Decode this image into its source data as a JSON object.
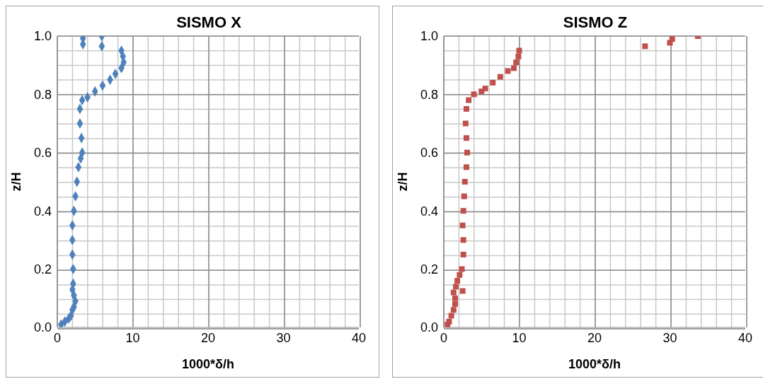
{
  "chart_data": [
    {
      "type": "scatter",
      "title": "SISMO X",
      "xlabel": "1000*δ/h",
      "ylabel": "z/H",
      "xlim": [
        0,
        40
      ],
      "ylim": [
        0,
        1
      ],
      "xticks": [
        0,
        10,
        20,
        30,
        40
      ],
      "yticks": [
        {
          "value": 0,
          "label": "0.0"
        },
        {
          "value": 0.2,
          "label": "0.2"
        },
        {
          "value": 0.4,
          "label": "0.4"
        },
        {
          "value": 0.6,
          "label": "0.6"
        },
        {
          "value": 0.8,
          "label": "0.8"
        },
        {
          "value": 1,
          "label": "1.0"
        }
      ],
      "grid": true,
      "marker": "diamond",
      "series": [
        {
          "color": "#4f81bd",
          "x": [
            0.5,
            1.0,
            1.5,
            1.8,
            2.0,
            2.2,
            2.4,
            2.2,
            2.0,
            2.1,
            2.1,
            2.0,
            2.0,
            2.0,
            2.2,
            2.4,
            2.6,
            2.8,
            3.1,
            3.3,
            3.2,
            3.0,
            3.0,
            3.3,
            4.0,
            5.0,
            6.0,
            7.0,
            7.7,
            8.5,
            8.8,
            8.7,
            8.5,
            3.4,
            3.4,
            5.9,
            5.9
          ],
          "values": [
            0.01,
            0.02,
            0.03,
            0.04,
            0.06,
            0.07,
            0.09,
            0.11,
            0.13,
            0.15,
            0.2,
            0.25,
            0.3,
            0.35,
            0.4,
            0.45,
            0.5,
            0.55,
            0.58,
            0.6,
            0.65,
            0.7,
            0.75,
            0.78,
            0.79,
            0.81,
            0.83,
            0.85,
            0.87,
            0.89,
            0.91,
            0.93,
            0.95,
            0.972,
            0.992,
            0.965,
            1.0
          ]
        }
      ]
    },
    {
      "type": "scatter",
      "title": "SISMO Z",
      "xlabel": "1000*δ/h",
      "ylabel": "z/H",
      "xlim": [
        0,
        40
      ],
      "ylim": [
        0,
        1
      ],
      "xticks": [
        0,
        10,
        20,
        30,
        40
      ],
      "yticks": [
        {
          "value": 0,
          "label": "0.0"
        },
        {
          "value": 0.2,
          "label": "0.2"
        },
        {
          "value": 0.4,
          "label": "0.4"
        },
        {
          "value": 0.6,
          "label": "0.6"
        },
        {
          "value": 0.8,
          "label": "0.8"
        },
        {
          "value": 1,
          "label": "1.0"
        }
      ],
      "grid": true,
      "marker": "square",
      "series": [
        {
          "color": "#c0504d",
          "x": [
            0.5,
            0.7,
            1.0,
            1.3,
            1.5,
            1.5,
            1.3,
            2.5,
            1.6,
            1.8,
            2.1,
            2.4,
            2.6,
            2.6,
            2.5,
            2.6,
            2.7,
            2.8,
            3.0,
            3.1,
            3.0,
            2.9,
            3.0,
            3.3,
            4.0,
            5.0,
            5.5,
            6.5,
            7.5,
            8.5,
            9.3,
            9.6,
            9.9,
            10.0,
            26.7,
            30.0,
            30.3,
            33.7
          ],
          "values": [
            0.01,
            0.02,
            0.04,
            0.06,
            0.08,
            0.1,
            0.12,
            0.125,
            0.14,
            0.16,
            0.18,
            0.2,
            0.25,
            0.3,
            0.35,
            0.4,
            0.45,
            0.5,
            0.55,
            0.6,
            0.65,
            0.7,
            0.75,
            0.78,
            0.8,
            0.81,
            0.82,
            0.84,
            0.86,
            0.88,
            0.89,
            0.91,
            0.93,
            0.95,
            0.965,
            0.977,
            0.99,
            1.0
          ]
        }
      ]
    }
  ]
}
